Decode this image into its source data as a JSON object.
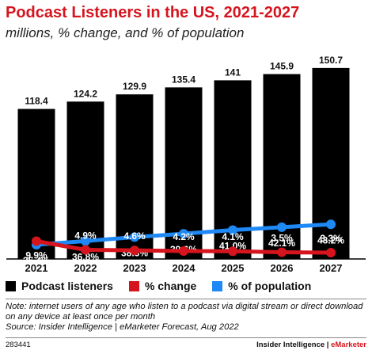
{
  "header": {
    "title": "Podcast Listeners in the US, 2021-2027",
    "subtitle": "millions, % change, and % of population"
  },
  "legend": {
    "listeners": "Podcast listeners",
    "change": "% change",
    "population": "% of population"
  },
  "note_lines": [
    "Note: internet users of any age who listen to a podcast via digital stream or direct download",
    "on any device at least once per month",
    "Source: Insider Intelligence | eMarketer Forecast, Aug 2022"
  ],
  "footer": {
    "id": "283441",
    "brand_main": "Insider Intelligence",
    "brand_sep": " | ",
    "brand_accent": "eMarketer"
  },
  "colors": {
    "title": "#d6141e",
    "bars": "#000000",
    "change": "#d6141e",
    "population": "#1e88f5"
  },
  "chart_data": {
    "type": "bar",
    "categories": [
      "2021",
      "2022",
      "2023",
      "2024",
      "2025",
      "2026",
      "2027"
    ],
    "series": [
      {
        "name": "Podcast listeners",
        "kind": "bar",
        "values": [
          118.4,
          124.2,
          129.9,
          135.4,
          141,
          145.9,
          150.7
        ],
        "labels": [
          "118.4",
          "124.2",
          "129.9",
          "135.4",
          "141",
          "145.9",
          "150.7"
        ]
      },
      {
        "name": "% change",
        "kind": "line",
        "values": [
          9.9,
          4.9,
          4.6,
          4.2,
          4.1,
          3.5,
          3.3
        ],
        "labels": [
          "9.9%",
          "4.9%",
          "4.6%",
          "4.2%",
          "4.1%",
          "3.5%",
          "3.3%"
        ]
      },
      {
        "name": "% of population",
        "kind": "line",
        "values": [
          35.4,
          36.8,
          38.3,
          39.6,
          41.0,
          42.1,
          43.2
        ],
        "labels": [
          "35.4%",
          "36.8%",
          "38.3%",
          "39.6%",
          "41.0%",
          "42.1%",
          "43.2%"
        ]
      }
    ],
    "ylim_bars": [
      0,
      160
    ],
    "legend_position": "bottom",
    "grid": false
  }
}
